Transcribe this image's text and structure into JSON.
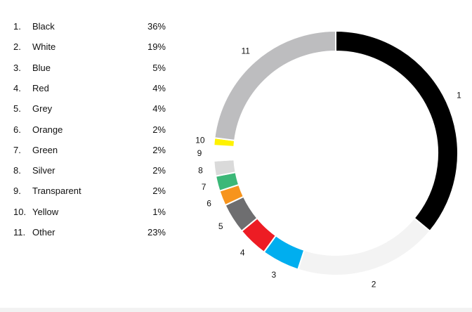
{
  "chart_data": {
    "type": "pie",
    "style": "donut",
    "categories": [
      "Black",
      "White",
      "Blue",
      "Red",
      "Grey",
      "Orange",
      "Green",
      "Silver",
      "Transparent",
      "Yellow",
      "Other"
    ],
    "ranks": [
      "1.",
      "2.",
      "3.",
      "4.",
      "5.",
      "6.",
      "7.",
      "8.",
      "9.",
      "10.",
      "11."
    ],
    "slice_labels": [
      "1",
      "2",
      "3",
      "4",
      "5",
      "6",
      "7",
      "8",
      "9",
      "10",
      "11"
    ],
    "values": [
      36,
      19,
      5,
      4,
      4,
      2,
      2,
      2,
      2,
      1,
      23
    ],
    "value_labels": [
      "36%",
      "19%",
      "5%",
      "4%",
      "4%",
      "2%",
      "2%",
      "2%",
      "2%",
      "1%",
      "23%"
    ],
    "colors": [
      "#000000",
      "#f3f3f3",
      "#00aeef",
      "#ed1c24",
      "#6e6e70",
      "#f7941d",
      "#3cb878",
      "#dadada",
      "#ffffff",
      "#fff200",
      "#bdbdbf"
    ],
    "legend_position": "left"
  }
}
